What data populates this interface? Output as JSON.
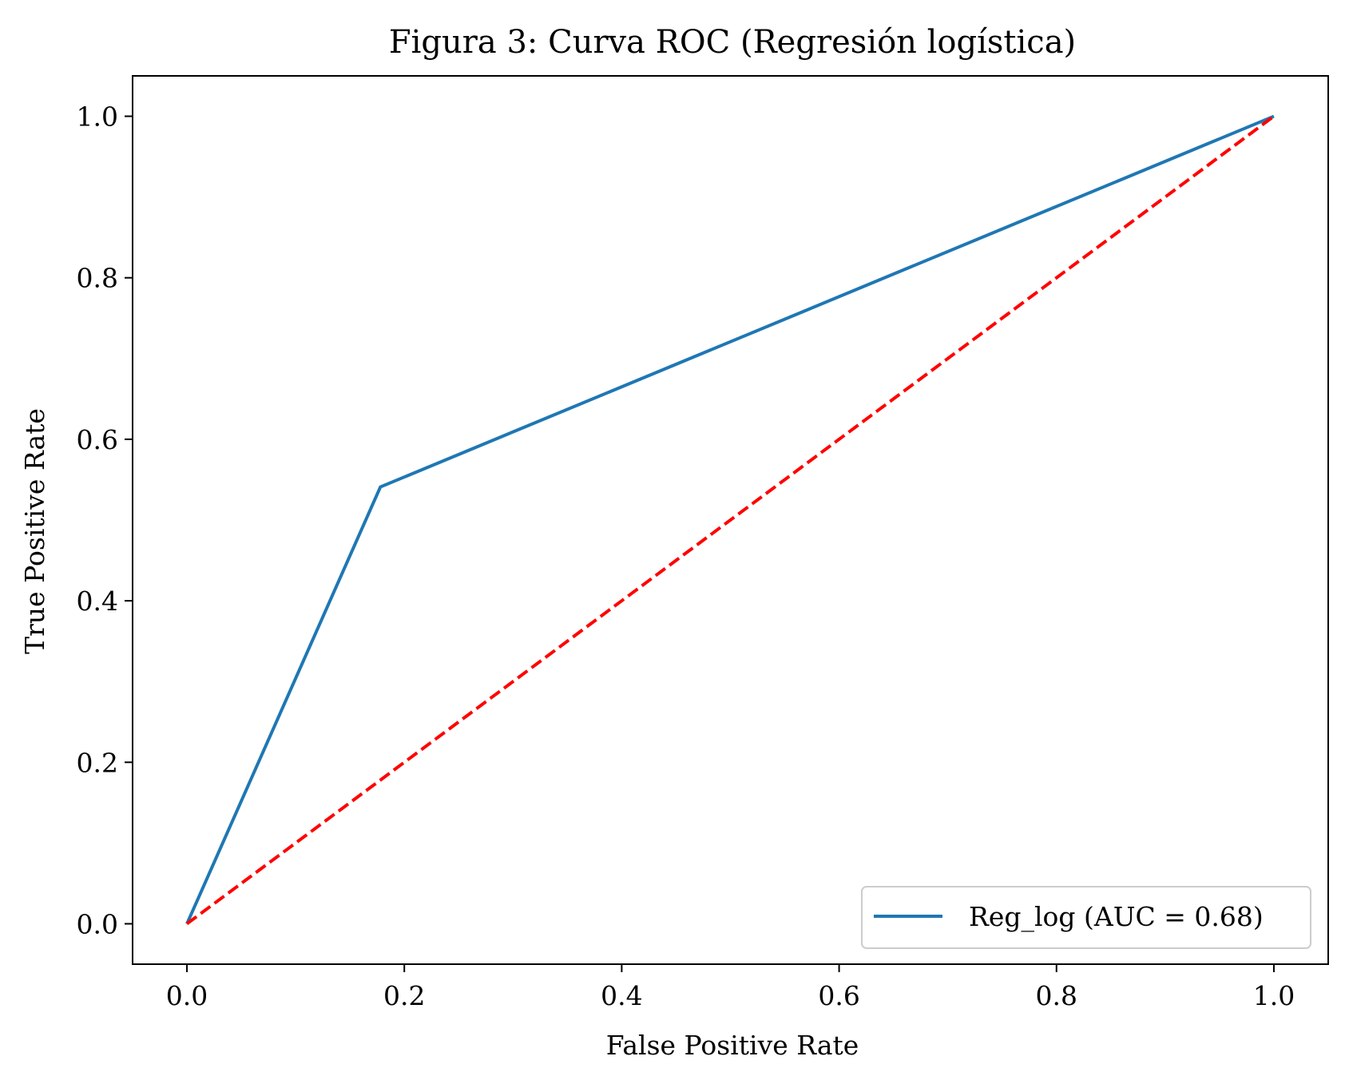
{
  "chart_data": {
    "type": "line",
    "title": "Figura 3: Curva ROC (Regresión logística)",
    "xlabel": "False Positive Rate",
    "ylabel": "True Positive Rate",
    "xlim": [
      -0.05,
      1.05
    ],
    "ylim": [
      -0.05,
      1.05
    ],
    "xticks": [
      0.0,
      0.2,
      0.4,
      0.6,
      0.8,
      1.0
    ],
    "yticks": [
      0.0,
      0.2,
      0.4,
      0.6,
      0.8,
      1.0
    ],
    "xtick_labels": [
      "0.0",
      "0.2",
      "0.4",
      "0.6",
      "0.8",
      "1.0"
    ],
    "ytick_labels": [
      "0.0",
      "0.2",
      "0.4",
      "0.6",
      "0.8",
      "1.0"
    ],
    "grid": false,
    "legend_position": "bottom-right",
    "series": [
      {
        "name": "Reg_log (AUC = 0.68)",
        "color": "#1f77b4",
        "style": "solid",
        "x": [
          0.0,
          0.178,
          1.0
        ],
        "y": [
          0.0,
          0.541,
          1.0
        ]
      },
      {
        "color": "#ff0000",
        "style": "dashed",
        "x": [
          0.0,
          1.0
        ],
        "y": [
          0.0,
          1.0
        ]
      }
    ]
  }
}
